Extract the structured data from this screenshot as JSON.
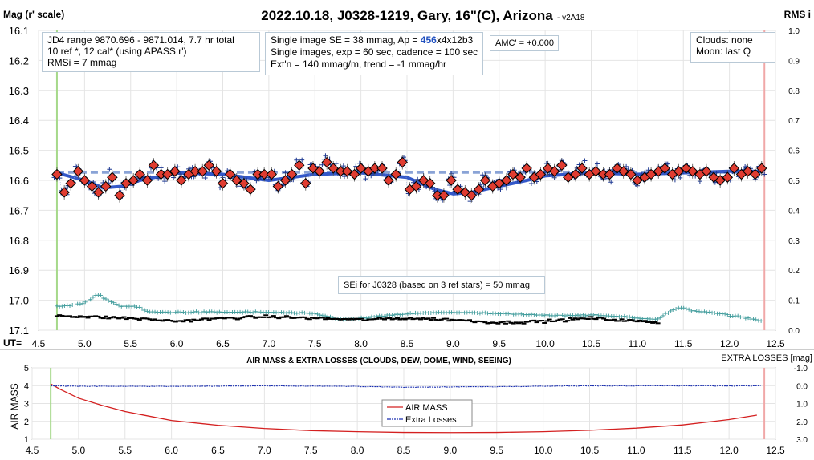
{
  "header": {
    "title": "2022.10.18, J0328-1219, Gary, 16\"(C), Arizona",
    "version": "- v2A18",
    "left_label": "Mag (r' scale)",
    "right_label": "RMS i",
    "ut_label": "UT="
  },
  "annotations": {
    "box1": [
      "JD4 range 9870.696 - 9871.014, 7.7 hr total",
      "10 ref *, 12 cal*  (using APASS r')",
      "RMSi = 7 mmag"
    ],
    "box2_line1_prefix": "Single image SE = 38 mmag, Ap = ",
    "box2_line1_ap": "456",
    "box2_line1_suffix": "x4x12b3",
    "box2_line2": "Single images, exp = 60 sec, cadence = 100 sec",
    "box2_line3": "Ext'n = 140 mmag/m, trend = -1 mmag/hr",
    "amc": "AMC' = +0.000",
    "box4": [
      "Clouds: none",
      "Moon: last Q"
    ],
    "sei": "SEi for J0328 (based on 3 ref stars) = 50 mmag"
  },
  "lower_panel": {
    "title": "AIR MASS & EXTRA LOSSES (CLOUDS, DEW, DOME, WIND, SEEING)",
    "right_title": "EXTRA LOSSES [mag]",
    "ylabel": "AIR MASS",
    "legend": [
      "AIR MASS",
      "Extra Losses"
    ]
  },
  "colors": {
    "avg_diamond": "#e03c31",
    "single": "#1f3a93",
    "trend": "#3358c9",
    "mean_dash": "#8aa3d6",
    "rms": "#3f9b9b",
    "airmass": "#d42020",
    "losses": "#1a2fb0",
    "start_line": "#a6d98a",
    "end_line": "#f0a8a8"
  },
  "chart_data": [
    {
      "type": "scatter",
      "title": "2022.10.18, J0328-1219, Gary, 16\"(C), Arizona",
      "xlabel": "UT",
      "ylabel": "Mag (r' scale)",
      "y2label": "RMS i",
      "xlim": [
        4.5,
        12.5
      ],
      "ylim": [
        17.1,
        16.1
      ],
      "y2lim": [
        0.0,
        1.0
      ],
      "x_ticks": [
        4.5,
        5.0,
        5.5,
        6.0,
        6.5,
        7.0,
        7.5,
        8.0,
        8.5,
        9.0,
        9.5,
        10.0,
        10.5,
        11.0,
        11.5,
        12.0,
        12.5
      ],
      "y_ticks": [
        16.1,
        16.2,
        16.3,
        16.4,
        16.5,
        16.6,
        16.7,
        16.8,
        16.9,
        17.0,
        17.1
      ],
      "y2_ticks": [
        1.0,
        0.9,
        0.8,
        0.7,
        0.6,
        0.5,
        0.4,
        0.3,
        0.2,
        0.1,
        0.0
      ],
      "start_ut": 4.7,
      "end_ut": 12.38,
      "mean_mag": 16.574,
      "series": [
        {
          "name": "5-image averages",
          "marker": "diamond",
          "x": [
            4.7,
            4.78,
            4.85,
            4.93,
            5.0,
            5.08,
            5.15,
            5.23,
            5.3,
            5.38,
            5.45,
            5.53,
            5.6,
            5.68,
            5.75,
            5.83,
            5.9,
            5.98,
            6.05,
            6.13,
            6.2,
            6.28,
            6.35,
            6.43,
            6.5,
            6.58,
            6.65,
            6.73,
            6.8,
            6.88,
            6.95,
            7.03,
            7.1,
            7.18,
            7.25,
            7.33,
            7.4,
            7.48,
            7.55,
            7.63,
            7.7,
            7.78,
            7.85,
            7.93,
            8.0,
            8.08,
            8.15,
            8.23,
            8.3,
            8.38,
            8.45,
            8.53,
            8.6,
            8.68,
            8.75,
            8.83,
            8.9,
            8.98,
            9.05,
            9.13,
            9.2,
            9.28,
            9.35,
            9.43,
            9.5,
            9.58,
            9.65,
            9.73,
            9.8,
            9.88,
            9.95,
            10.03,
            10.1,
            10.18,
            10.25,
            10.33,
            10.4,
            10.48,
            10.55,
            10.63,
            10.7,
            10.78,
            10.85,
            10.93,
            11.0,
            11.08,
            11.15,
            11.23,
            11.3,
            11.38,
            11.45,
            11.53,
            11.6,
            11.68,
            11.75,
            11.83,
            11.9,
            11.98,
            12.05,
            12.13,
            12.2,
            12.28,
            12.35
          ],
          "y": [
            16.58,
            16.64,
            16.61,
            16.57,
            16.6,
            16.62,
            16.64,
            16.62,
            16.59,
            16.65,
            16.61,
            16.6,
            16.58,
            16.6,
            16.55,
            16.58,
            16.58,
            16.57,
            16.6,
            16.58,
            16.57,
            16.57,
            16.55,
            16.57,
            16.61,
            16.58,
            16.6,
            16.61,
            16.63,
            16.58,
            16.58,
            16.58,
            16.62,
            16.6,
            16.58,
            16.55,
            16.61,
            16.56,
            16.57,
            16.54,
            16.56,
            16.57,
            16.57,
            16.58,
            16.56,
            16.57,
            16.56,
            16.56,
            16.6,
            16.58,
            16.54,
            16.63,
            16.62,
            16.6,
            16.61,
            16.65,
            16.65,
            16.6,
            16.63,
            16.64,
            16.65,
            16.63,
            16.6,
            16.62,
            16.61,
            16.6,
            16.58,
            16.59,
            16.56,
            16.59,
            16.58,
            16.56,
            16.57,
            16.55,
            16.59,
            16.58,
            16.56,
            16.58,
            16.57,
            16.58,
            16.58,
            16.56,
            16.57,
            16.58,
            16.6,
            16.59,
            16.58,
            16.57,
            16.56,
            16.58,
            16.57,
            16.56,
            16.57,
            16.58,
            16.57,
            16.59,
            16.6,
            16.59,
            16.56,
            16.58,
            16.57,
            16.58,
            16.56
          ]
        },
        {
          "name": "Trend",
          "type": "line",
          "x": [
            4.7,
            5.0,
            5.2,
            5.4,
            5.6,
            6.0,
            6.5,
            7.0,
            7.5,
            8.0,
            8.5,
            8.8,
            9.0,
            9.2,
            9.5,
            9.8,
            10.0,
            10.5,
            11.0,
            11.5,
            12.0,
            12.35
          ],
          "y": [
            16.575,
            16.6,
            16.625,
            16.62,
            16.6,
            16.575,
            16.58,
            16.6,
            16.58,
            16.575,
            16.59,
            16.63,
            16.645,
            16.64,
            16.62,
            16.6,
            16.585,
            16.575,
            16.58,
            16.575,
            16.57,
            16.57
          ]
        },
        {
          "name": "RMS i",
          "axis": "y2",
          "x": [
            4.7,
            4.9,
            5.0,
            5.1,
            5.15,
            5.25,
            5.4,
            5.5,
            5.6,
            5.7,
            6.0,
            6.5,
            7.0,
            7.5,
            7.8,
            8.0,
            8.5,
            9.0,
            9.5,
            10.0,
            10.5,
            10.9,
            11.0,
            11.2,
            11.4,
            11.5,
            11.6,
            11.8,
            12.0,
            12.2,
            12.36
          ],
          "y": [
            0.08,
            0.085,
            0.09,
            0.11,
            0.12,
            0.1,
            0.08,
            0.08,
            0.075,
            0.06,
            0.06,
            0.06,
            0.06,
            0.055,
            0.035,
            0.04,
            0.055,
            0.06,
            0.055,
            0.05,
            0.05,
            0.045,
            0.04,
            0.035,
            0.07,
            0.075,
            0.065,
            0.06,
            0.05,
            0.04,
            0.03
          ]
        },
        {
          "name": "Reference RMS",
          "axis": "y2",
          "x": [
            4.7,
            5.0,
            5.5,
            6.0,
            6.5,
            7.0,
            7.5,
            8.0,
            8.5,
            9.0,
            9.5,
            10.0,
            10.5,
            11.0,
            11.25
          ],
          "y": [
            0.05,
            0.045,
            0.04,
            0.03,
            0.04,
            0.045,
            0.04,
            0.035,
            0.04,
            0.035,
            0.025,
            0.03,
            0.04,
            0.03,
            0.025
          ]
        }
      ]
    },
    {
      "type": "line",
      "title": "AIR MASS & EXTRA LOSSES (CLOUDS, DEW, DOME, WIND, SEEING)",
      "ylabel": "AIR MASS",
      "y2label": "EXTRA LOSSES [mag]",
      "xlim": [
        4.5,
        12.5
      ],
      "ylim": [
        1,
        5
      ],
      "y2lim": [
        -1.0,
        3.0
      ],
      "x_ticks": [
        4.5,
        5.0,
        5.5,
        6.0,
        6.5,
        7.0,
        7.5,
        8.0,
        8.5,
        9.0,
        9.5,
        10.0,
        10.5,
        11.0,
        11.5,
        12.0,
        12.5
      ],
      "y_ticks": [
        1,
        2,
        3,
        4,
        5
      ],
      "y2_ticks": [
        "-1.0",
        "0.0",
        "1.0",
        "2.0",
        "3.0"
      ],
      "series": [
        {
          "name": "AIR MASS",
          "x": [
            4.7,
            4.8,
            5.0,
            5.25,
            5.5,
            5.75,
            6.0,
            6.5,
            7.0,
            7.5,
            8.0,
            8.5,
            9.0,
            9.5,
            10.0,
            10.5,
            11.0,
            11.5,
            12.0,
            12.3
          ],
          "y": [
            4.1,
            3.8,
            3.3,
            2.9,
            2.55,
            2.3,
            2.05,
            1.78,
            1.6,
            1.48,
            1.42,
            1.38,
            1.37,
            1.38,
            1.42,
            1.5,
            1.62,
            1.8,
            2.1,
            2.35
          ]
        },
        {
          "name": "Extra Losses",
          "x": [
            4.7,
            5.0,
            6.0,
            7.0,
            8.0,
            8.5,
            9.0,
            9.5,
            10.0,
            10.5,
            11.0,
            12.0,
            12.35
          ],
          "y": [
            0.0,
            0.02,
            0.03,
            0.0,
            0.03,
            0.08,
            0.06,
            0.05,
            0.02,
            0.0,
            0.0,
            0.0,
            0.0
          ]
        }
      ]
    }
  ]
}
